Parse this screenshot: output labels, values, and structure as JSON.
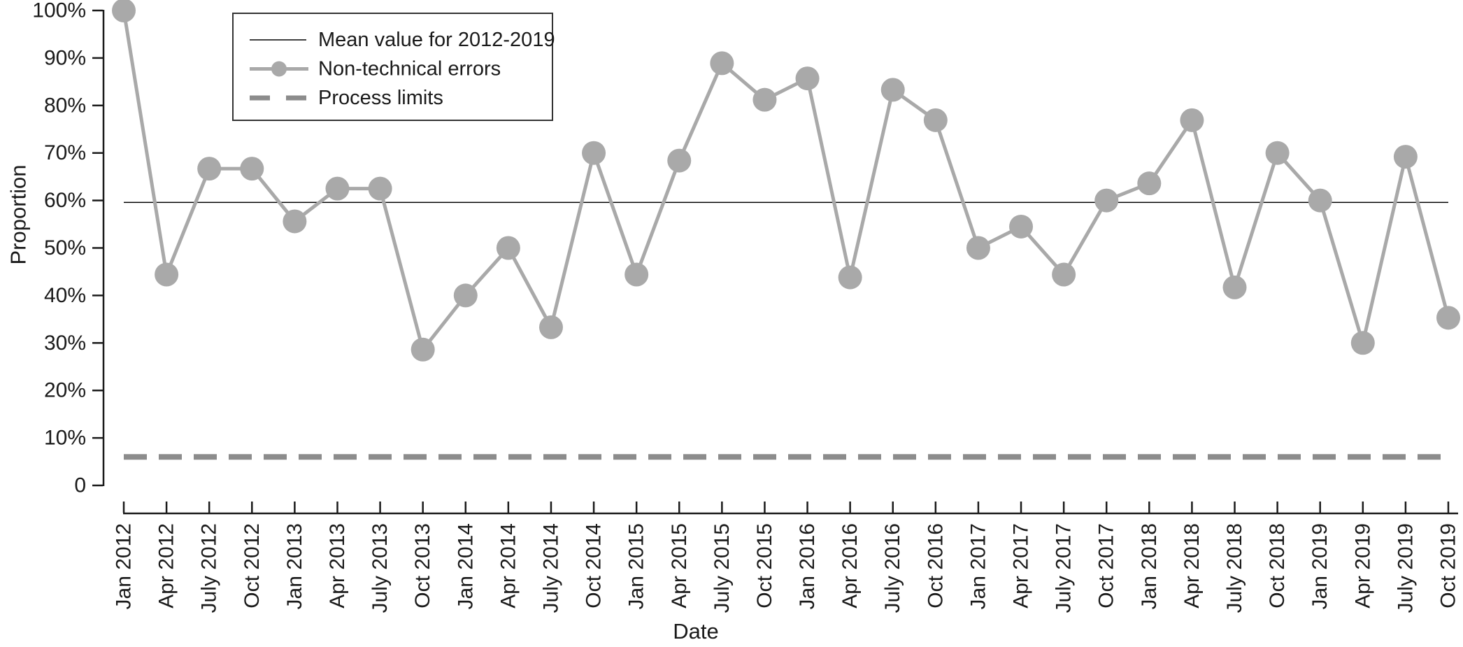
{
  "chart_data": {
    "type": "line",
    "title": "",
    "xlabel": "Date",
    "ylabel": "Proportion",
    "categories": [
      "Jan 2012",
      "Apr 2012",
      "July 2012",
      "Oct 2012",
      "Jan 2013",
      "Apr 2013",
      "July 2013",
      "Oct 2013",
      "Jan 2014",
      "Apr 2014",
      "July 2014",
      "Oct 2014",
      "Jan 2015",
      "Apr 2015",
      "July 2015",
      "Oct 2015",
      "Jan 2016",
      "Apr 2016",
      "July 2016",
      "Oct 2016",
      "Jan 2017",
      "Apr 2017",
      "July 2017",
      "Oct 2017",
      "Jan 2018",
      "Apr 2018",
      "July 2018",
      "Oct 2018",
      "Jan 2019",
      "Apr 2019",
      "July 2019",
      "Oct 2019"
    ],
    "series": [
      {
        "name": "Mean value for 2012-2019",
        "kind": "reference-line",
        "style": "solid",
        "value": 59.6,
        "color": "#000000",
        "stroke_width": 1.5
      },
      {
        "name": "Non-technical errors",
        "kind": "line-with-markers",
        "color": "#a9a9a9",
        "stroke_width": 5,
        "marker_radius": 17,
        "values": [
          100,
          44.4,
          66.7,
          66.7,
          55.6,
          62.5,
          62.5,
          28.6,
          40,
          50,
          33.3,
          70,
          44.4,
          68.4,
          88.9,
          81.2,
          85.7,
          43.8,
          83.3,
          76.9,
          50,
          54.5,
          44.4,
          60,
          63.6,
          76.9,
          41.7,
          70,
          60,
          30,
          69.2,
          35.3
        ]
      },
      {
        "name": "Process limits",
        "kind": "reference-line",
        "style": "dashed",
        "value": 6,
        "color": "#8c8c8c",
        "stroke_width": 8
      }
    ],
    "ylim": [
      0,
      100
    ],
    "yticks": [
      {
        "value": 0,
        "label": "0"
      },
      {
        "value": 10,
        "label": "10%"
      },
      {
        "value": 20,
        "label": "20%"
      },
      {
        "value": 30,
        "label": "30%"
      },
      {
        "value": 40,
        "label": "40%"
      },
      {
        "value": 50,
        "label": "50%"
      },
      {
        "value": 60,
        "label": "60%"
      },
      {
        "value": 70,
        "label": "70%"
      },
      {
        "value": 80,
        "label": "80%"
      },
      {
        "value": 90,
        "label": "90%"
      },
      {
        "value": 100,
        "label": "100%"
      }
    ],
    "legend_position": "top-left",
    "grid": false
  },
  "colors": {
    "axis": "#1a1a1a",
    "text": "#1a1a1a",
    "background": "#ffffff"
  }
}
